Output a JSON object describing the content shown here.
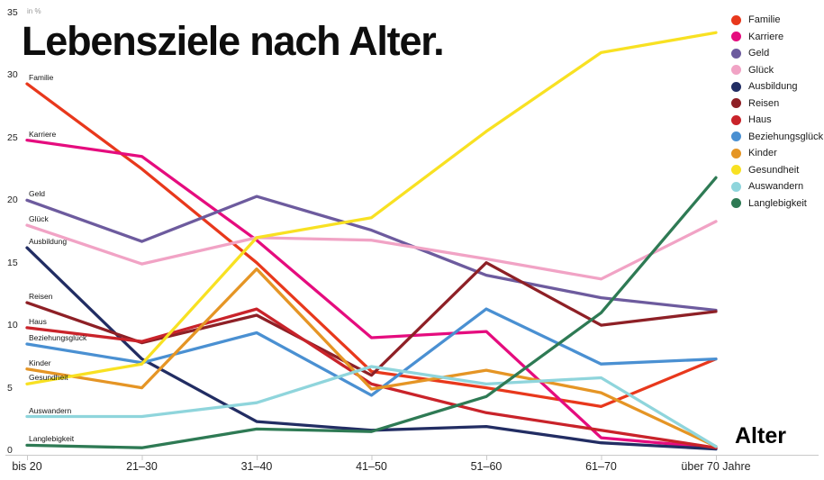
{
  "chart_data": {
    "type": "line",
    "title": "Lebensziele nach Alter.",
    "xlabel": "Alter",
    "ylabel": "in %",
    "ylim": [
      0,
      35
    ],
    "y_ticks": [
      0,
      5,
      10,
      15,
      20,
      25,
      30,
      35
    ],
    "grid": false,
    "legend_position": "top-right",
    "categories": [
      "bis 20",
      "21–30",
      "31–40",
      "41–50",
      "51–60",
      "61–70",
      "über 70 Jahre"
    ],
    "series": [
      {
        "name": "Familie",
        "color": "#e8381c",
        "values": [
          29.3,
          22.5,
          15.0,
          6.3,
          5.0,
          3.5,
          7.3
        ]
      },
      {
        "name": "Karriere",
        "color": "#e50c7e",
        "values": [
          24.8,
          23.5,
          16.8,
          9.0,
          9.5,
          1.0,
          0.2
        ]
      },
      {
        "name": "Geld",
        "color": "#6d5b9e",
        "values": [
          20.0,
          16.7,
          20.3,
          17.6,
          14.0,
          12.2,
          11.2
        ]
      },
      {
        "name": "Glück",
        "color": "#f1a3c5",
        "values": [
          18.0,
          14.9,
          17.0,
          16.8,
          15.3,
          13.7,
          18.3
        ]
      },
      {
        "name": "Ausbildung",
        "color": "#222d63",
        "values": [
          16.2,
          7.3,
          2.3,
          1.6,
          1.9,
          0.6,
          0.1
        ]
      },
      {
        "name": "Reisen",
        "color": "#8e2026",
        "values": [
          11.8,
          8.6,
          10.8,
          6.0,
          15.0,
          10.0,
          11.1
        ]
      },
      {
        "name": "Haus",
        "color": "#c9232a",
        "values": [
          9.8,
          8.7,
          11.3,
          5.3,
          3.0,
          1.6,
          0.2
        ]
      },
      {
        "name": "Beziehungsglück",
        "color": "#4a90d2",
        "values": [
          8.5,
          7.0,
          9.4,
          4.4,
          11.3,
          6.9,
          7.3
        ]
      },
      {
        "name": "Kinder",
        "color": "#e59525",
        "values": [
          6.5,
          5.0,
          14.5,
          4.9,
          6.4,
          4.6,
          0.3
        ]
      },
      {
        "name": "Gesundheit",
        "color": "#f8e122",
        "values": [
          5.3,
          6.9,
          17.0,
          18.6,
          25.5,
          31.8,
          33.4
        ]
      },
      {
        "name": "Auswandern",
        "color": "#8fd5dc",
        "values": [
          2.7,
          2.7,
          3.8,
          6.7,
          5.3,
          5.8,
          0.3
        ]
      },
      {
        "name": "Langlebigkeit",
        "color": "#2e7a54",
        "values": [
          0.4,
          0.2,
          1.7,
          1.5,
          4.3,
          11.0,
          21.8
        ]
      }
    ]
  }
}
